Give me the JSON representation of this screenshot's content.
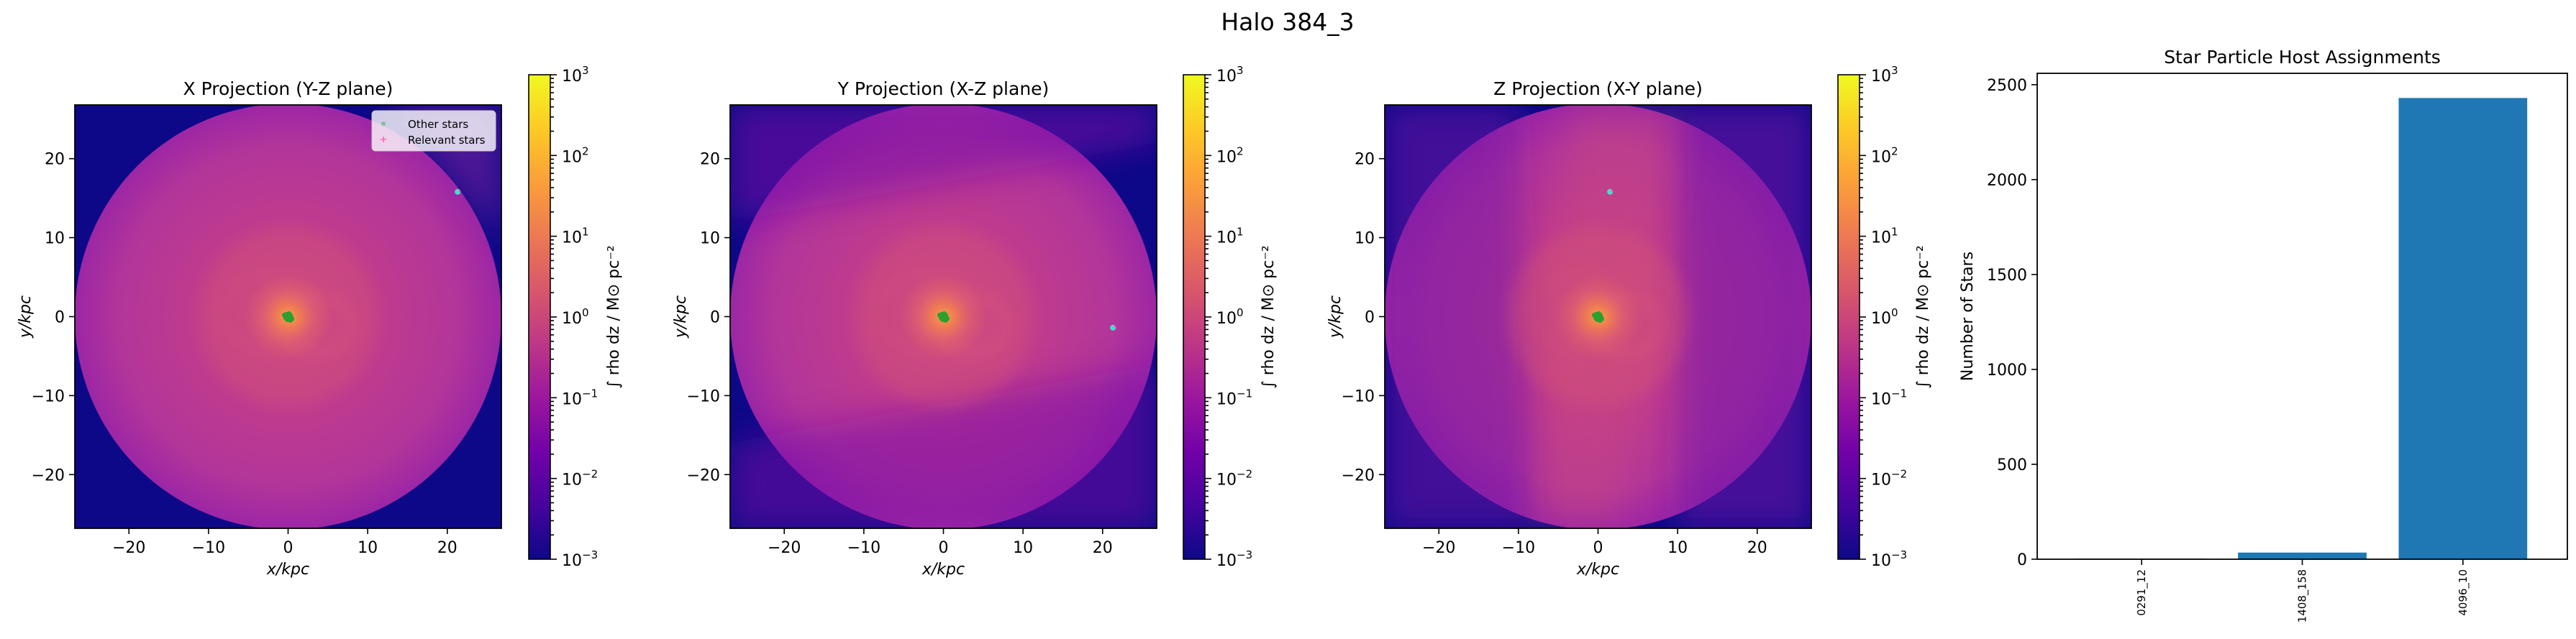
{
  "figure": {
    "title": "Halo 384_3"
  },
  "colors": {
    "background_level": "#0d0887",
    "other_stars": "#2ca02c",
    "relevant_stars": "#ff69b4",
    "satellite_marker": "#40e0d0",
    "bar_color": "#1f77b4",
    "colormap": [
      "#0d0887",
      "#46039f",
      "#7201a8",
      "#9c179e",
      "#bd3786",
      "#d8576b",
      "#ed7953",
      "#fb9f3a",
      "#fdca26",
      "#f0f921"
    ]
  },
  "colorbar": {
    "label": "∫ rho dz / M⊙ pc⁻²",
    "range_log10": [
      -3,
      3
    ],
    "ticks": [
      {
        "exp": "3",
        "base": "10"
      },
      {
        "exp": "2",
        "base": "10"
      },
      {
        "exp": "1",
        "base": "10"
      },
      {
        "exp": "0",
        "base": "10"
      },
      {
        "exp": "−1",
        "base": "10"
      },
      {
        "exp": "−2",
        "base": "10"
      },
      {
        "exp": "−3",
        "base": "10"
      }
    ]
  },
  "legend": {
    "items": [
      {
        "label": "Other stars"
      },
      {
        "label": "Relevant stars"
      }
    ]
  },
  "chart_data": [
    {
      "type": "heatmap",
      "title": "X Projection (Y-Z plane)",
      "xlabel": "x/kpc",
      "ylabel": "y/kpc",
      "xlim": [
        -26.8,
        26.8
      ],
      "ylim": [
        -26.8,
        26.8
      ],
      "xticks": [
        -20,
        -10,
        0,
        10,
        20
      ],
      "yticks": [
        -20,
        -10,
        0,
        10,
        20
      ],
      "xtick_labels": [
        "−20",
        "−10",
        "0",
        "10",
        "20"
      ],
      "ytick_labels": [
        "−20",
        "−10",
        "0",
        "10",
        "20"
      ],
      "halo_radius_kpc": 26.8,
      "central_stars": {
        "x": 0,
        "y": 0
      },
      "satellite": {
        "x": 21.3,
        "y": 15.8
      },
      "legend": true
    },
    {
      "type": "heatmap",
      "title": "Y Projection (X-Z plane)",
      "xlabel": "x/kpc",
      "ylabel": "y/kpc",
      "xlim": [
        -26.8,
        26.8
      ],
      "ylim": [
        -26.8,
        26.8
      ],
      "xticks": [
        -20,
        -10,
        0,
        10,
        20
      ],
      "yticks": [
        -20,
        -10,
        0,
        10,
        20
      ],
      "xtick_labels": [
        "−20",
        "−10",
        "0",
        "10",
        "20"
      ],
      "ytick_labels": [
        "−20",
        "−10",
        "0",
        "10",
        "20"
      ],
      "halo_radius_kpc": 26.8,
      "central_stars": {
        "x": 0,
        "y": 0
      },
      "satellite": {
        "x": 21.3,
        "y": -1.4
      },
      "legend": false
    },
    {
      "type": "heatmap",
      "title": "Z Projection (X-Y plane)",
      "xlabel": "x/kpc",
      "ylabel": "y/kpc",
      "xlim": [
        -26.8,
        26.8
      ],
      "ylim": [
        -26.8,
        26.8
      ],
      "xticks": [
        -20,
        -10,
        0,
        10,
        20
      ],
      "yticks": [
        -20,
        -10,
        0,
        10,
        20
      ],
      "xtick_labels": [
        "−20",
        "−10",
        "0",
        "10",
        "20"
      ],
      "ytick_labels": [
        "−20",
        "−10",
        "0",
        "10",
        "20"
      ],
      "halo_radius_kpc": 26.8,
      "central_stars": {
        "x": 0,
        "y": 0
      },
      "satellite": {
        "x": 1.5,
        "y": 15.8
      },
      "legend": false
    },
    {
      "type": "bar",
      "title": "Star Particle Host Assignments",
      "xlabel": "",
      "ylabel": "Number of Stars",
      "categories": [
        "0291_12",
        "1408_158",
        "4096_10"
      ],
      "values": [
        3,
        35,
        2430
      ],
      "ylim": [
        0,
        2560
      ],
      "yticks": [
        0,
        500,
        1000,
        1500,
        2000,
        2500
      ]
    }
  ]
}
